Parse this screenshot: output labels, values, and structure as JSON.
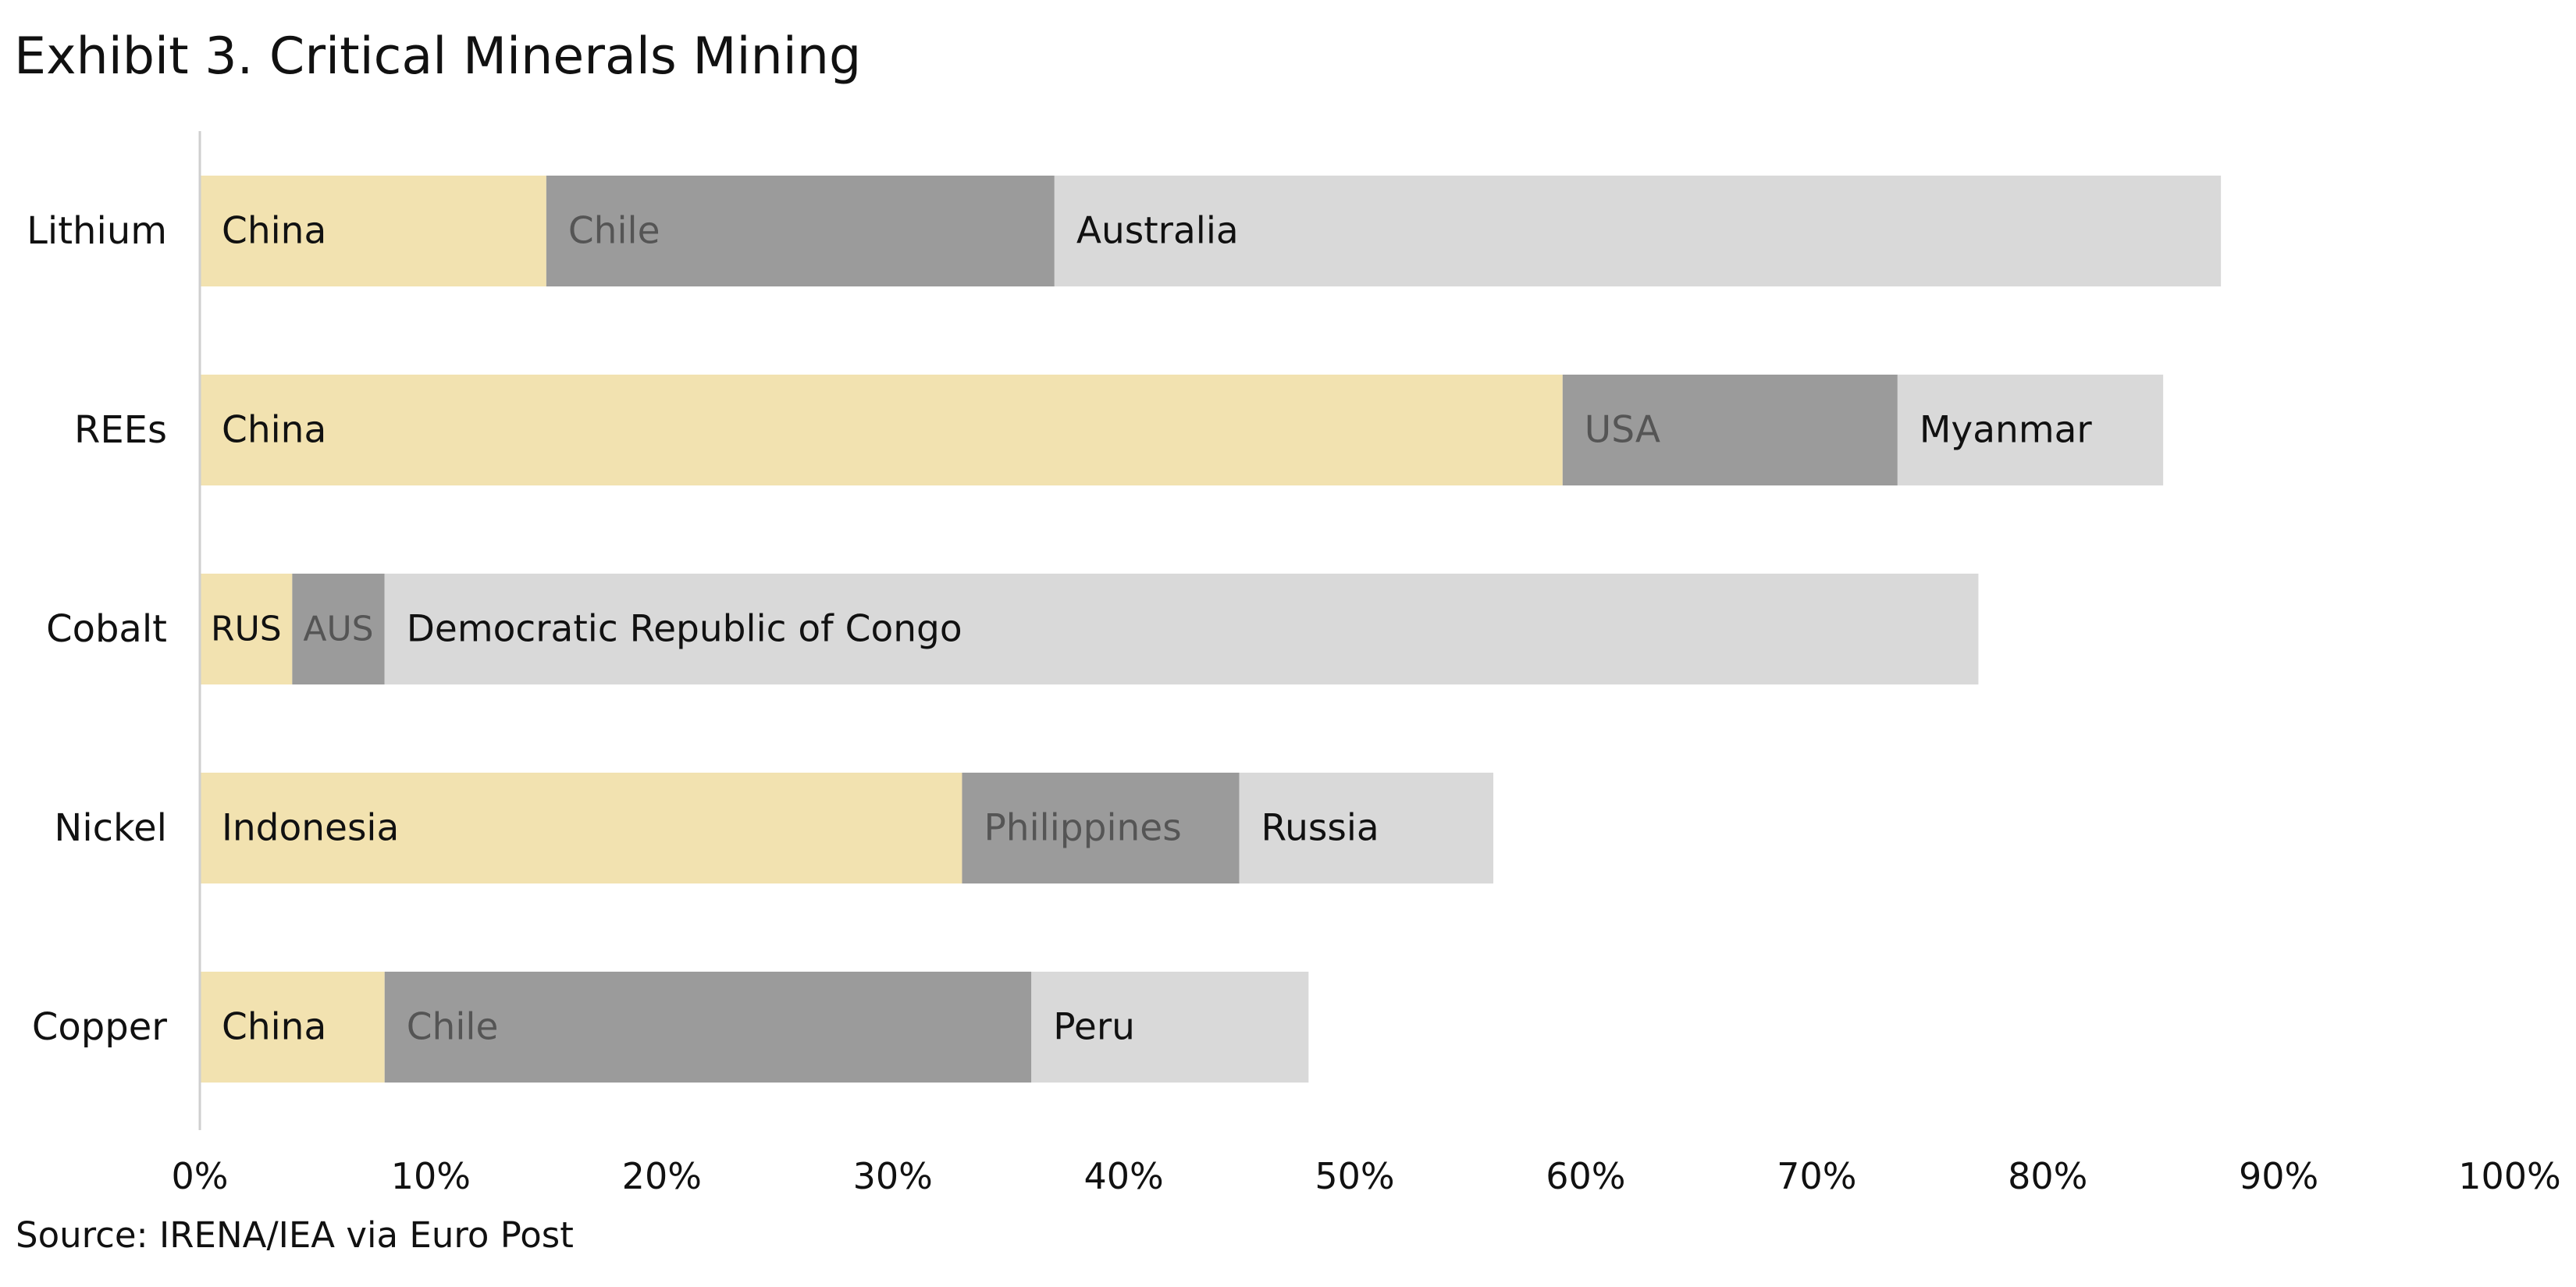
{
  "title": "Exhibit 3. Critical Minerals Mining",
  "source": "Source: IRENA/IEA via Euro Post",
  "colors": {
    "first": "#f2e2b0",
    "second": "#9b9b9b",
    "third": "#d9d9d9",
    "axis": "#cfcfcf",
    "text_dark": "#111111",
    "text_mid": "#555555"
  },
  "chart_data": {
    "type": "bar",
    "orientation": "horizontal",
    "stacked": true,
    "categories": [
      "Lithium",
      "REEs",
      "Cobalt",
      "Nickel",
      "Copper"
    ],
    "segments": [
      [
        {
          "label": "China",
          "value": 15
        },
        {
          "label": "Chile",
          "value": 22
        },
        {
          "label": "Australia",
          "value": 50.5
        }
      ],
      [
        {
          "label": "China",
          "value": 59
        },
        {
          "label": "USA",
          "value": 14.5
        },
        {
          "label": "Myanmar",
          "value": 11.5
        }
      ],
      [
        {
          "label": "RUS",
          "value": 4
        },
        {
          "label": "AUS",
          "value": 4
        },
        {
          "label": "Democratic Republic of Congo",
          "value": 69
        }
      ],
      [
        {
          "label": "Indonesia",
          "value": 33
        },
        {
          "label": "Philippines",
          "value": 12
        },
        {
          "label": "Russia",
          "value": 11
        }
      ],
      [
        {
          "label": "China",
          "value": 8
        },
        {
          "label": "Chile",
          "value": 28
        },
        {
          "label": "Peru",
          "value": 12
        }
      ]
    ],
    "xlim": [
      0,
      100
    ],
    "x_ticks": [
      0,
      10,
      20,
      30,
      40,
      50,
      60,
      70,
      80,
      90,
      100
    ],
    "x_tick_labels": [
      "0%",
      "10%",
      "20%",
      "30%",
      "40%",
      "50%",
      "60%",
      "70%",
      "80%",
      "90%",
      "100%"
    ],
    "grid": false,
    "legend": "none"
  }
}
